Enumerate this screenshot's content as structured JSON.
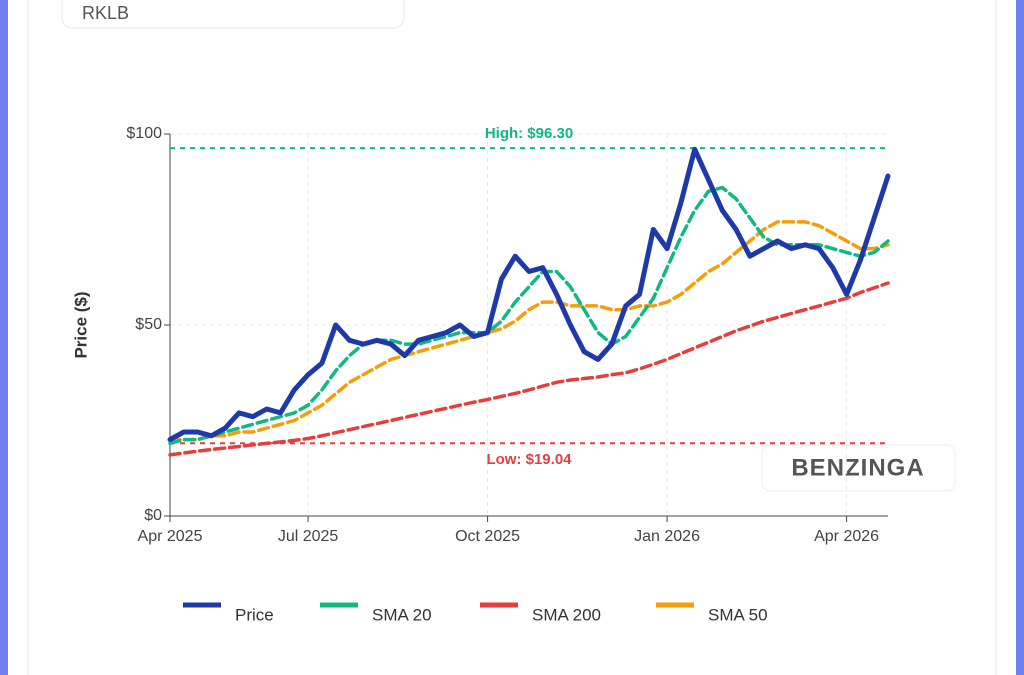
{
  "ticker": "RKLB",
  "watermark": "BENZINGA",
  "chart_data": {
    "type": "line",
    "y_label": "Price ($)",
    "categories": [
      "Apr 2025",
      null,
      null,
      null,
      null,
      null,
      null,
      null,
      null,
      null,
      "Jul 2025",
      null,
      null,
      null,
      null,
      null,
      null,
      null,
      null,
      null,
      null,
      null,
      null,
      "Oct 2025",
      null,
      null,
      null,
      null,
      null,
      null,
      null,
      null,
      null,
      null,
      null,
      null,
      "Jan 2026",
      null,
      null,
      null,
      null,
      null,
      null,
      null,
      null,
      null,
      null,
      null,
      null,
      "Apr 2026",
      null,
      null,
      null
    ],
    "series": [
      {
        "name": "Price",
        "color": "#1f3aa8",
        "values": [
          20,
          22,
          22,
          21,
          23,
          27,
          26,
          28,
          27,
          33,
          37,
          40,
          50,
          46,
          45,
          46,
          45,
          42,
          46,
          47,
          48,
          50,
          47,
          48,
          62,
          68,
          64,
          65,
          58,
          50,
          43,
          41,
          45,
          55,
          58,
          75,
          70,
          82,
          96,
          88,
          80,
          75,
          68,
          70,
          72,
          70,
          71,
          70,
          65,
          58,
          67,
          78,
          89
        ]
      },
      {
        "name": "SMA 20",
        "color": "#10b981",
        "values": [
          19,
          20,
          20,
          21,
          22,
          23,
          24,
          25,
          26,
          27,
          29,
          33,
          38,
          42,
          45,
          46,
          46,
          45,
          45,
          46,
          47,
          48,
          48,
          48,
          51,
          56,
          60,
          64,
          64,
          60,
          54,
          48,
          45,
          47,
          52,
          57,
          65,
          73,
          80,
          85,
          86,
          83,
          78,
          73,
          71,
          71,
          71,
          71,
          70,
          69,
          68,
          69,
          72
        ]
      },
      {
        "name": "SMA 200",
        "color": "#e53e3e",
        "values": [
          16,
          16.5,
          17,
          17.4,
          17.8,
          18.2,
          18.6,
          19,
          19.4,
          19.8,
          20.3,
          21,
          21.8,
          22.6,
          23.4,
          24.2,
          25,
          25.8,
          26.6,
          27.4,
          28.2,
          29,
          29.8,
          30.5,
          31.3,
          32.1,
          33,
          34,
          35,
          35.6,
          36,
          36.4,
          37,
          37.5,
          38.5,
          39.7,
          41,
          42.5,
          44,
          45.5,
          47,
          48.5,
          49.7,
          51,
          52,
          53,
          54,
          55,
          56,
          57,
          58.5,
          59.7,
          61
        ]
      },
      {
        "name": "SMA 50",
        "color": "#f59e0b",
        "values": [
          20,
          20,
          20,
          21,
          21,
          22,
          22,
          23,
          24,
          25,
          27,
          29,
          32,
          35,
          37,
          39,
          41,
          42,
          43,
          44,
          45,
          46,
          47,
          48,
          49,
          51,
          54,
          56,
          56,
          55,
          55,
          55,
          54,
          54,
          55,
          55,
          56,
          58,
          61,
          64,
          66,
          69,
          72,
          75,
          77,
          77,
          77,
          76,
          74,
          72,
          70,
          70,
          71
        ]
      }
    ],
    "annotations": [
      {
        "text": "High: $96.30",
        "value": 96.3,
        "color": "#10b981"
      },
      {
        "text": "Low: $19.04",
        "value": 19.04,
        "color": "#e53e3e"
      }
    ],
    "ylim": [
      0,
      100
    ],
    "yticks": [
      {
        "value": 0,
        "label": "$0"
      },
      {
        "value": 50,
        "label": "$50"
      },
      {
        "value": 100,
        "label": "$100"
      }
    ],
    "grid": true,
    "legend": "bottom"
  }
}
